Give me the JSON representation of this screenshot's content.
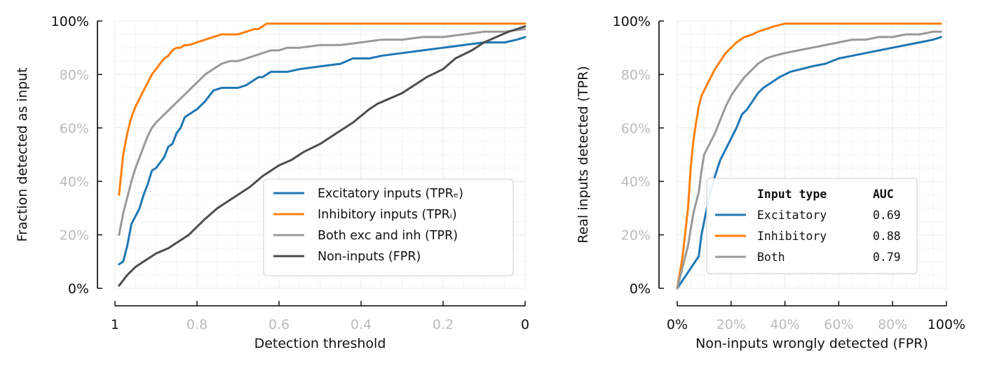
{
  "chart_data": [
    {
      "type": "line",
      "xlabel": "Detection threshold",
      "ylabel": "Fraction detected as input",
      "xlim": [
        1,
        0
      ],
      "ylim": [
        0,
        1
      ],
      "x_ticks": [
        {
          "v": 1,
          "label": "1",
          "major": true
        },
        {
          "v": 0.8,
          "label": "0.8",
          "major": false
        },
        {
          "v": 0.6,
          "label": "0.6",
          "major": false
        },
        {
          "v": 0.4,
          "label": "0.4",
          "major": false
        },
        {
          "v": 0.2,
          "label": "0.2",
          "major": false
        },
        {
          "v": 0,
          "label": "0",
          "major": true
        }
      ],
      "y_ticks": [
        {
          "v": 0,
          "label": "0%",
          "major": true
        },
        {
          "v": 0.2,
          "label": "20%",
          "major": false
        },
        {
          "v": 0.4,
          "label": "40%",
          "major": false
        },
        {
          "v": 0.6,
          "label": "60%",
          "major": false
        },
        {
          "v": 0.8,
          "label": "80%",
          "major": false
        },
        {
          "v": 1,
          "label": "100%",
          "major": true
        }
      ],
      "grid": true,
      "legend_position": "bottom-right",
      "series": [
        {
          "name": "Excitatory inputs (TPRₑ)",
          "color": "#1f77b4",
          "x": [
            0.99,
            0.98,
            0.97,
            0.96,
            0.95,
            0.94,
            0.93,
            0.92,
            0.91,
            0.9,
            0.89,
            0.88,
            0.87,
            0.86,
            0.85,
            0.84,
            0.83,
            0.82,
            0.81,
            0.8,
            0.78,
            0.76,
            0.74,
            0.73,
            0.72,
            0.7,
            0.68,
            0.66,
            0.65,
            0.64,
            0.62,
            0.6,
            0.58,
            0.55,
            0.5,
            0.45,
            0.42,
            0.38,
            0.35,
            0.3,
            0.25,
            0.2,
            0.15,
            0.1,
            0.05,
            0.02,
            0
          ],
          "y": [
            0.09,
            0.1,
            0.16,
            0.24,
            0.27,
            0.3,
            0.35,
            0.39,
            0.44,
            0.45,
            0.47,
            0.49,
            0.53,
            0.54,
            0.58,
            0.6,
            0.64,
            0.65,
            0.66,
            0.67,
            0.7,
            0.74,
            0.75,
            0.75,
            0.75,
            0.75,
            0.76,
            0.78,
            0.79,
            0.79,
            0.81,
            0.81,
            0.81,
            0.82,
            0.83,
            0.84,
            0.86,
            0.86,
            0.87,
            0.88,
            0.89,
            0.9,
            0.91,
            0.92,
            0.92,
            0.93,
            0.94
          ]
        },
        {
          "name": "Inhibitory inputs (TPRᵢ)",
          "color": "#ff7f0e",
          "x": [
            0.99,
            0.98,
            0.97,
            0.96,
            0.95,
            0.94,
            0.93,
            0.92,
            0.91,
            0.9,
            0.89,
            0.88,
            0.87,
            0.86,
            0.85,
            0.84,
            0.83,
            0.82,
            0.8,
            0.78,
            0.76,
            0.74,
            0.72,
            0.7,
            0.68,
            0.66,
            0.65,
            0.64,
            0.63,
            0.6,
            0.5,
            0.4,
            0.2,
            0
          ],
          "y": [
            0.35,
            0.5,
            0.58,
            0.64,
            0.68,
            0.71,
            0.74,
            0.77,
            0.8,
            0.82,
            0.84,
            0.86,
            0.87,
            0.89,
            0.9,
            0.9,
            0.91,
            0.91,
            0.92,
            0.93,
            0.94,
            0.95,
            0.95,
            0.95,
            0.96,
            0.97,
            0.97,
            0.98,
            0.99,
            0.99,
            0.99,
            0.99,
            0.99,
            0.99
          ]
        },
        {
          "name": "Both exc and inh (TPR)",
          "color": "#999999",
          "x": [
            0.99,
            0.98,
            0.97,
            0.96,
            0.95,
            0.94,
            0.93,
            0.92,
            0.91,
            0.9,
            0.88,
            0.86,
            0.84,
            0.82,
            0.8,
            0.78,
            0.76,
            0.74,
            0.72,
            0.7,
            0.68,
            0.66,
            0.64,
            0.62,
            0.6,
            0.58,
            0.55,
            0.5,
            0.45,
            0.4,
            0.35,
            0.3,
            0.25,
            0.2,
            0.15,
            0.1,
            0.05,
            0
          ],
          "y": [
            0.2,
            0.28,
            0.34,
            0.4,
            0.45,
            0.49,
            0.53,
            0.57,
            0.6,
            0.62,
            0.65,
            0.68,
            0.71,
            0.74,
            0.77,
            0.8,
            0.82,
            0.84,
            0.85,
            0.85,
            0.86,
            0.87,
            0.88,
            0.89,
            0.89,
            0.9,
            0.9,
            0.91,
            0.91,
            0.92,
            0.93,
            0.93,
            0.94,
            0.94,
            0.95,
            0.96,
            0.96,
            0.97
          ]
        },
        {
          "name": "Non-inputs (FPR)",
          "color": "#4d4d4d",
          "x": [
            0.99,
            0.97,
            0.95,
            0.93,
            0.9,
            0.87,
            0.84,
            0.82,
            0.8,
            0.78,
            0.75,
            0.72,
            0.7,
            0.67,
            0.64,
            0.6,
            0.57,
            0.54,
            0.5,
            0.46,
            0.42,
            0.38,
            0.36,
            0.33,
            0.3,
            0.27,
            0.24,
            0.2,
            0.17,
            0.13,
            0.1,
            0.07,
            0.04,
            0.02,
            0
          ],
          "y": [
            0.01,
            0.05,
            0.08,
            0.1,
            0.13,
            0.15,
            0.18,
            0.2,
            0.23,
            0.26,
            0.3,
            0.33,
            0.35,
            0.38,
            0.42,
            0.46,
            0.48,
            0.51,
            0.54,
            0.58,
            0.62,
            0.67,
            0.69,
            0.71,
            0.73,
            0.76,
            0.79,
            0.82,
            0.86,
            0.89,
            0.92,
            0.94,
            0.96,
            0.97,
            0.98
          ]
        }
      ]
    },
    {
      "type": "line",
      "xlabel": "Non-inputs wrongly detected (FPR)",
      "ylabel": "Real inputs detected (TPR)",
      "xlim": [
        0,
        1
      ],
      "ylim": [
        0,
        1
      ],
      "x_ticks": [
        {
          "v": 0,
          "label": "0%",
          "major": true
        },
        {
          "v": 0.2,
          "label": "20%",
          "major": false
        },
        {
          "v": 0.4,
          "label": "40%",
          "major": false
        },
        {
          "v": 0.6,
          "label": "60%",
          "major": false
        },
        {
          "v": 0.8,
          "label": "80%",
          "major": false
        },
        {
          "v": 1,
          "label": "100%",
          "major": true
        }
      ],
      "y_ticks": [
        {
          "v": 0,
          "label": "0%",
          "major": true
        },
        {
          "v": 0.2,
          "label": "20%",
          "major": false
        },
        {
          "v": 0.4,
          "label": "40%",
          "major": false
        },
        {
          "v": 0.6,
          "label": "60%",
          "major": false
        },
        {
          "v": 0.8,
          "label": "80%",
          "major": false
        },
        {
          "v": 1,
          "label": "100%",
          "major": true
        }
      ],
      "grid": true,
      "legend_position": "bottom-right",
      "legend_header": {
        "name": "Input type",
        "auc": "AUC"
      },
      "series": [
        {
          "name": "Excitatory",
          "auc": "0.69",
          "color": "#1f77b4",
          "x": [
            0,
            0.02,
            0.04,
            0.06,
            0.08,
            0.09,
            0.1,
            0.12,
            0.14,
            0.15,
            0.16,
            0.18,
            0.2,
            0.22,
            0.24,
            0.26,
            0.28,
            0.3,
            0.32,
            0.35,
            0.38,
            0.42,
            0.46,
            0.5,
            0.55,
            0.6,
            0.65,
            0.7,
            0.75,
            0.8,
            0.85,
            0.9,
            0.95,
            0.98
          ],
          "y": [
            0,
            0.03,
            0.06,
            0.09,
            0.12,
            0.2,
            0.25,
            0.35,
            0.42,
            0.45,
            0.48,
            0.52,
            0.56,
            0.6,
            0.65,
            0.67,
            0.7,
            0.73,
            0.75,
            0.77,
            0.79,
            0.81,
            0.82,
            0.83,
            0.84,
            0.86,
            0.87,
            0.88,
            0.89,
            0.9,
            0.91,
            0.92,
            0.93,
            0.94
          ]
        },
        {
          "name": "Inhibitory",
          "auc": "0.88",
          "color": "#ff7f0e",
          "x": [
            0,
            0.02,
            0.04,
            0.05,
            0.06,
            0.07,
            0.08,
            0.09,
            0.1,
            0.12,
            0.14,
            0.16,
            0.18,
            0.2,
            0.22,
            0.25,
            0.28,
            0.3,
            0.33,
            0.36,
            0.4,
            0.45,
            0.5,
            0.6,
            0.7,
            0.8,
            0.9,
            0.98
          ],
          "y": [
            0,
            0.12,
            0.3,
            0.45,
            0.55,
            0.62,
            0.68,
            0.72,
            0.74,
            0.78,
            0.82,
            0.85,
            0.88,
            0.9,
            0.92,
            0.94,
            0.95,
            0.96,
            0.97,
            0.98,
            0.99,
            0.99,
            0.99,
            0.99,
            0.99,
            0.99,
            0.99,
            0.99
          ]
        },
        {
          "name": "Both",
          "auc": "0.79",
          "color": "#999999",
          "x": [
            0,
            0.02,
            0.04,
            0.06,
            0.08,
            0.09,
            0.1,
            0.12,
            0.14,
            0.16,
            0.18,
            0.2,
            0.22,
            0.25,
            0.28,
            0.3,
            0.33,
            0.36,
            0.4,
            0.45,
            0.5,
            0.55,
            0.6,
            0.65,
            0.7,
            0.75,
            0.8,
            0.85,
            0.9,
            0.95,
            0.98
          ],
          "y": [
            0,
            0.08,
            0.16,
            0.28,
            0.36,
            0.44,
            0.5,
            0.54,
            0.58,
            0.63,
            0.68,
            0.72,
            0.75,
            0.79,
            0.82,
            0.84,
            0.86,
            0.87,
            0.88,
            0.89,
            0.9,
            0.91,
            0.92,
            0.93,
            0.93,
            0.94,
            0.94,
            0.95,
            0.95,
            0.96,
            0.96
          ]
        }
      ]
    }
  ]
}
